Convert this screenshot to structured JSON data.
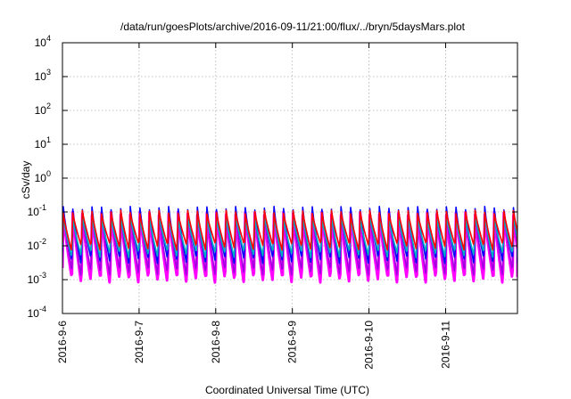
{
  "chart_data": {
    "type": "line",
    "title": "/data/run/goesPlots/archive/2016-09-11/21:00/flux/../bryn/5daysMars.plot",
    "xlabel": "Coordinated Universal Time (UTC)",
    "ylabel": "cSv/day",
    "y_scale": "log",
    "ylim": [
      0.0001,
      10000
    ],
    "y_ticks": [
      {
        "value": 0.0001,
        "base": "10",
        "exp": "-4"
      },
      {
        "value": 0.001,
        "base": "10",
        "exp": "-3"
      },
      {
        "value": 0.01,
        "base": "10",
        "exp": "-2"
      },
      {
        "value": 0.1,
        "base": "10",
        "exp": "-1"
      },
      {
        "value": 1,
        "base": "10",
        "exp": "0"
      },
      {
        "value": 10,
        "base": "10",
        "exp": "1"
      },
      {
        "value": 100,
        "base": "10",
        "exp": "2"
      },
      {
        "value": 1000,
        "base": "10",
        "exp": "3"
      },
      {
        "value": 10000,
        "base": "10",
        "exp": "4"
      }
    ],
    "x_ticks": [
      "2016-9-6",
      "2016-9-7",
      "2016-9-8",
      "2016-9-9",
      "2016-9-10",
      "2016-9-11"
    ],
    "xlim": [
      "2016-9-6 00:00",
      "2016-9-11 22:30"
    ],
    "grid": true,
    "pattern": {
      "oscillations_per_day": 8,
      "peak_value": 0.12,
      "trough_value": 0.005
    },
    "series": [
      {
        "color": "#ff00ff",
        "peak": 0.09,
        "trough": 0.0011
      },
      {
        "color": "#a000e0",
        "peak": 0.1,
        "trough": 0.0018
      },
      {
        "color": "#0000ff",
        "peak": 0.13,
        "trough": 0.004
      },
      {
        "color": "#00b0c0",
        "peak": 0.07,
        "trough": 0.006
      },
      {
        "color": "#ff0000",
        "peak": 0.1,
        "trough": 0.01
      }
    ]
  }
}
